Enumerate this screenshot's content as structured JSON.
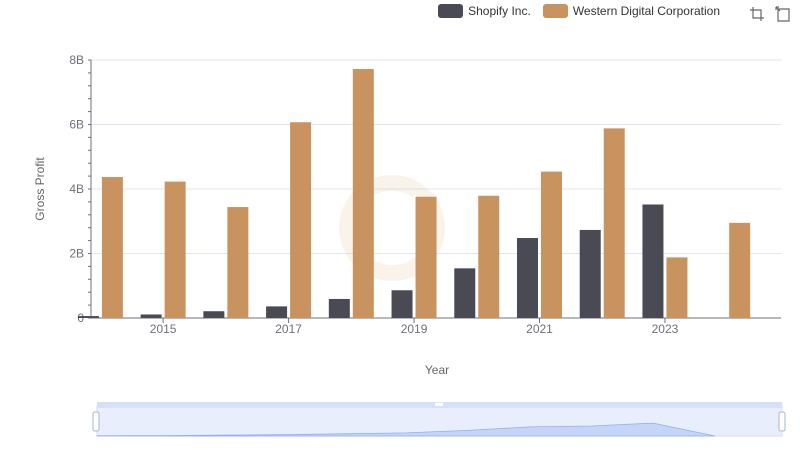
{
  "chart_data": {
    "type": "bar",
    "title": "",
    "xlabel": "Year",
    "ylabel": "Gross Profit",
    "x_tick_labels": [
      "2015",
      "2017",
      "2019",
      "2021",
      "2023"
    ],
    "y_tick_labels": [
      "0",
      "2B",
      "4B",
      "6B",
      "8B"
    ],
    "ylim": [
      0,
      8000000000
    ],
    "categories": [
      "2014",
      "2015",
      "2016",
      "2017",
      "2018",
      "2019",
      "2020",
      "2021",
      "2022",
      "2023",
      "2024"
    ],
    "series": [
      {
        "name": "Shopify Inc.",
        "color": "#4a4a55",
        "values": [
          60000000,
          110000000,
          210000000,
          360000000,
          590000000,
          860000000,
          1540000000,
          2480000000,
          2730000000,
          3520000000,
          null
        ]
      },
      {
        "name": "Western Digital Corporation",
        "color": "#c99360",
        "values": [
          4370000000,
          4230000000,
          3440000000,
          6070000000,
          7720000000,
          3760000000,
          3790000000,
          4540000000,
          5880000000,
          1880000000,
          2950000000
        ]
      }
    ],
    "grid": true,
    "legend_position": "top-right",
    "datazoom_slider": true
  },
  "toolbox": {
    "icons": [
      "zoom-icon",
      "restore-icon"
    ]
  }
}
